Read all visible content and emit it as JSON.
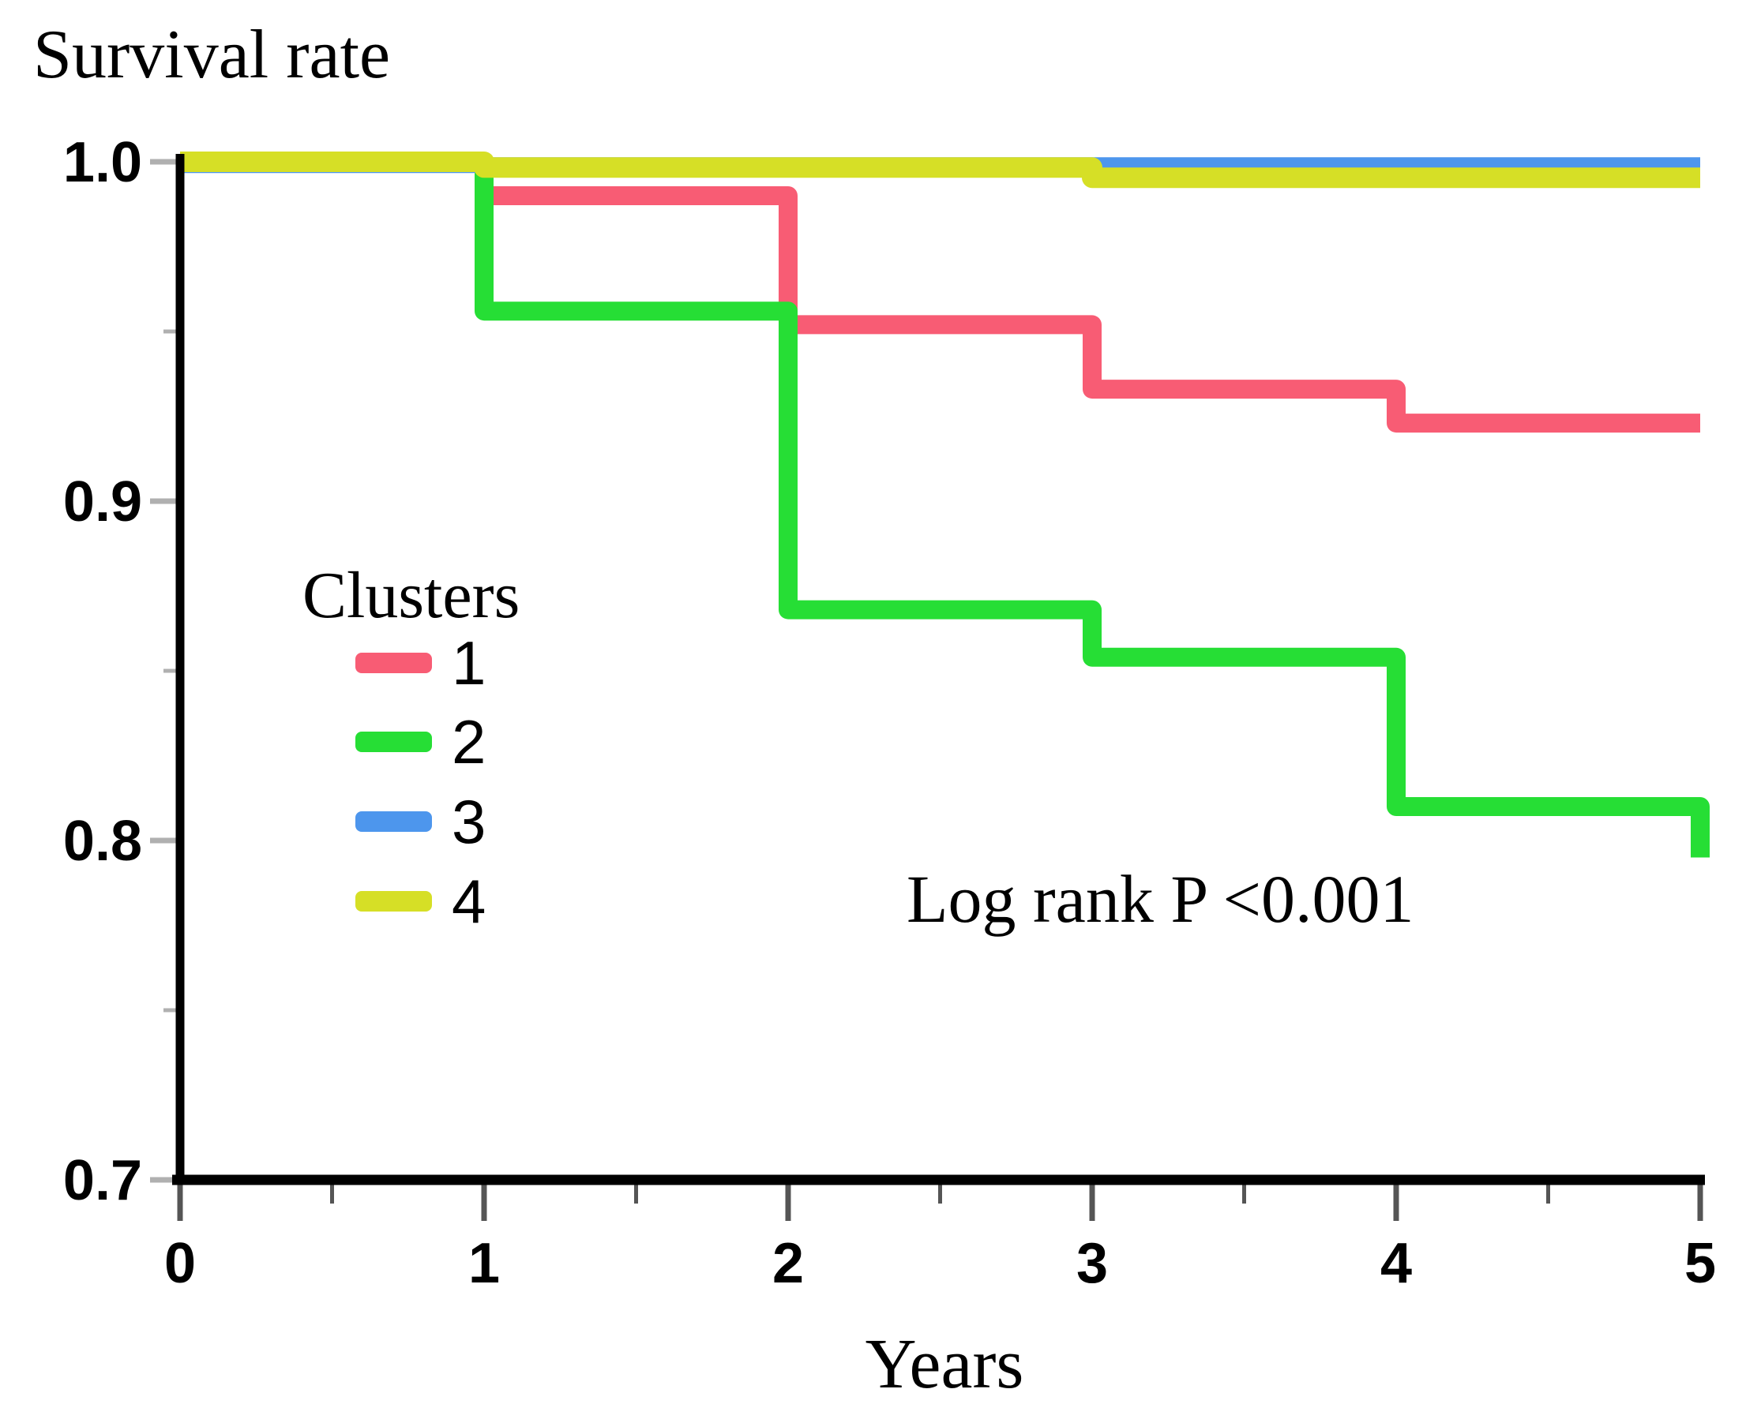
{
  "page_title": "Survival rate",
  "ylabel_title": "Survival rate",
  "annotation": "Log rank P <0.001",
  "xlabel": "Years",
  "legend": {
    "title": "Clusters",
    "items": [
      {
        "label": "1",
        "color": "#f85c74"
      },
      {
        "label": "2",
        "color": "#26de35"
      },
      {
        "label": "3",
        "color": "#4d96ed"
      },
      {
        "label": "4",
        "color": "#d6df26"
      }
    ]
  },
  "colors": {
    "axis": "#000000",
    "y_tick": "#b0b0b0",
    "x_tick": "#555555",
    "background": "#ffffff"
  },
  "chart_data": {
    "type": "line",
    "subtype": "kaplan-meier-step",
    "title": "Survival rate",
    "xlabel": "Years",
    "ylabel": "Survival rate",
    "xlim": [
      0,
      5
    ],
    "ylim": [
      0.7,
      1.0
    ],
    "grid": false,
    "legend_position": "mid-left",
    "x_major_ticks": [
      0,
      1,
      2,
      3,
      4,
      5
    ],
    "x_major_tick_labels": [
      "0",
      "1",
      "2",
      "3",
      "4",
      "5"
    ],
    "x_minor_ticks": [
      0.5,
      1.5,
      2.5,
      3.5,
      4.5
    ],
    "y_major_ticks": [
      1.0,
      0.9,
      0.8,
      0.7
    ],
    "y_major_tick_labels": [
      "1.0",
      "0.9",
      "0.8",
      "0.7"
    ],
    "y_minor_ticks": [
      0.95,
      0.85,
      0.75
    ],
    "annotation": "Log rank P <0.001",
    "series": [
      {
        "name": "1",
        "color": "#f85c74",
        "points": [
          [
            0,
            1.0
          ],
          [
            1,
            1.0
          ],
          [
            1,
            0.99
          ],
          [
            2,
            0.99
          ],
          [
            2,
            0.952
          ],
          [
            3,
            0.952
          ],
          [
            3,
            0.933
          ],
          [
            4,
            0.933
          ],
          [
            4,
            0.923
          ],
          [
            5,
            0.923
          ]
        ]
      },
      {
        "name": "2",
        "color": "#26de35",
        "points": [
          [
            0,
            1.0
          ],
          [
            1,
            1.0
          ],
          [
            1,
            0.956
          ],
          [
            2,
            0.956
          ],
          [
            2,
            0.868
          ],
          [
            3,
            0.868
          ],
          [
            3,
            0.854
          ],
          [
            4,
            0.854
          ],
          [
            4,
            0.81
          ],
          [
            5,
            0.81
          ],
          [
            5,
            0.795
          ]
        ]
      },
      {
        "name": "3",
        "color": "#4d96ed",
        "points": [
          [
            0,
            0.999
          ],
          [
            5,
            0.999
          ]
        ]
      },
      {
        "name": "4",
        "color": "#d6df26",
        "points": [
          [
            0,
            1.0
          ],
          [
            1,
            1.0
          ],
          [
            1,
            0.9983
          ],
          [
            3,
            0.9983
          ],
          [
            3,
            0.9953
          ],
          [
            5,
            0.9953
          ]
        ]
      }
    ],
    "draw_order": [
      "1",
      "2",
      "3",
      "4"
    ]
  }
}
